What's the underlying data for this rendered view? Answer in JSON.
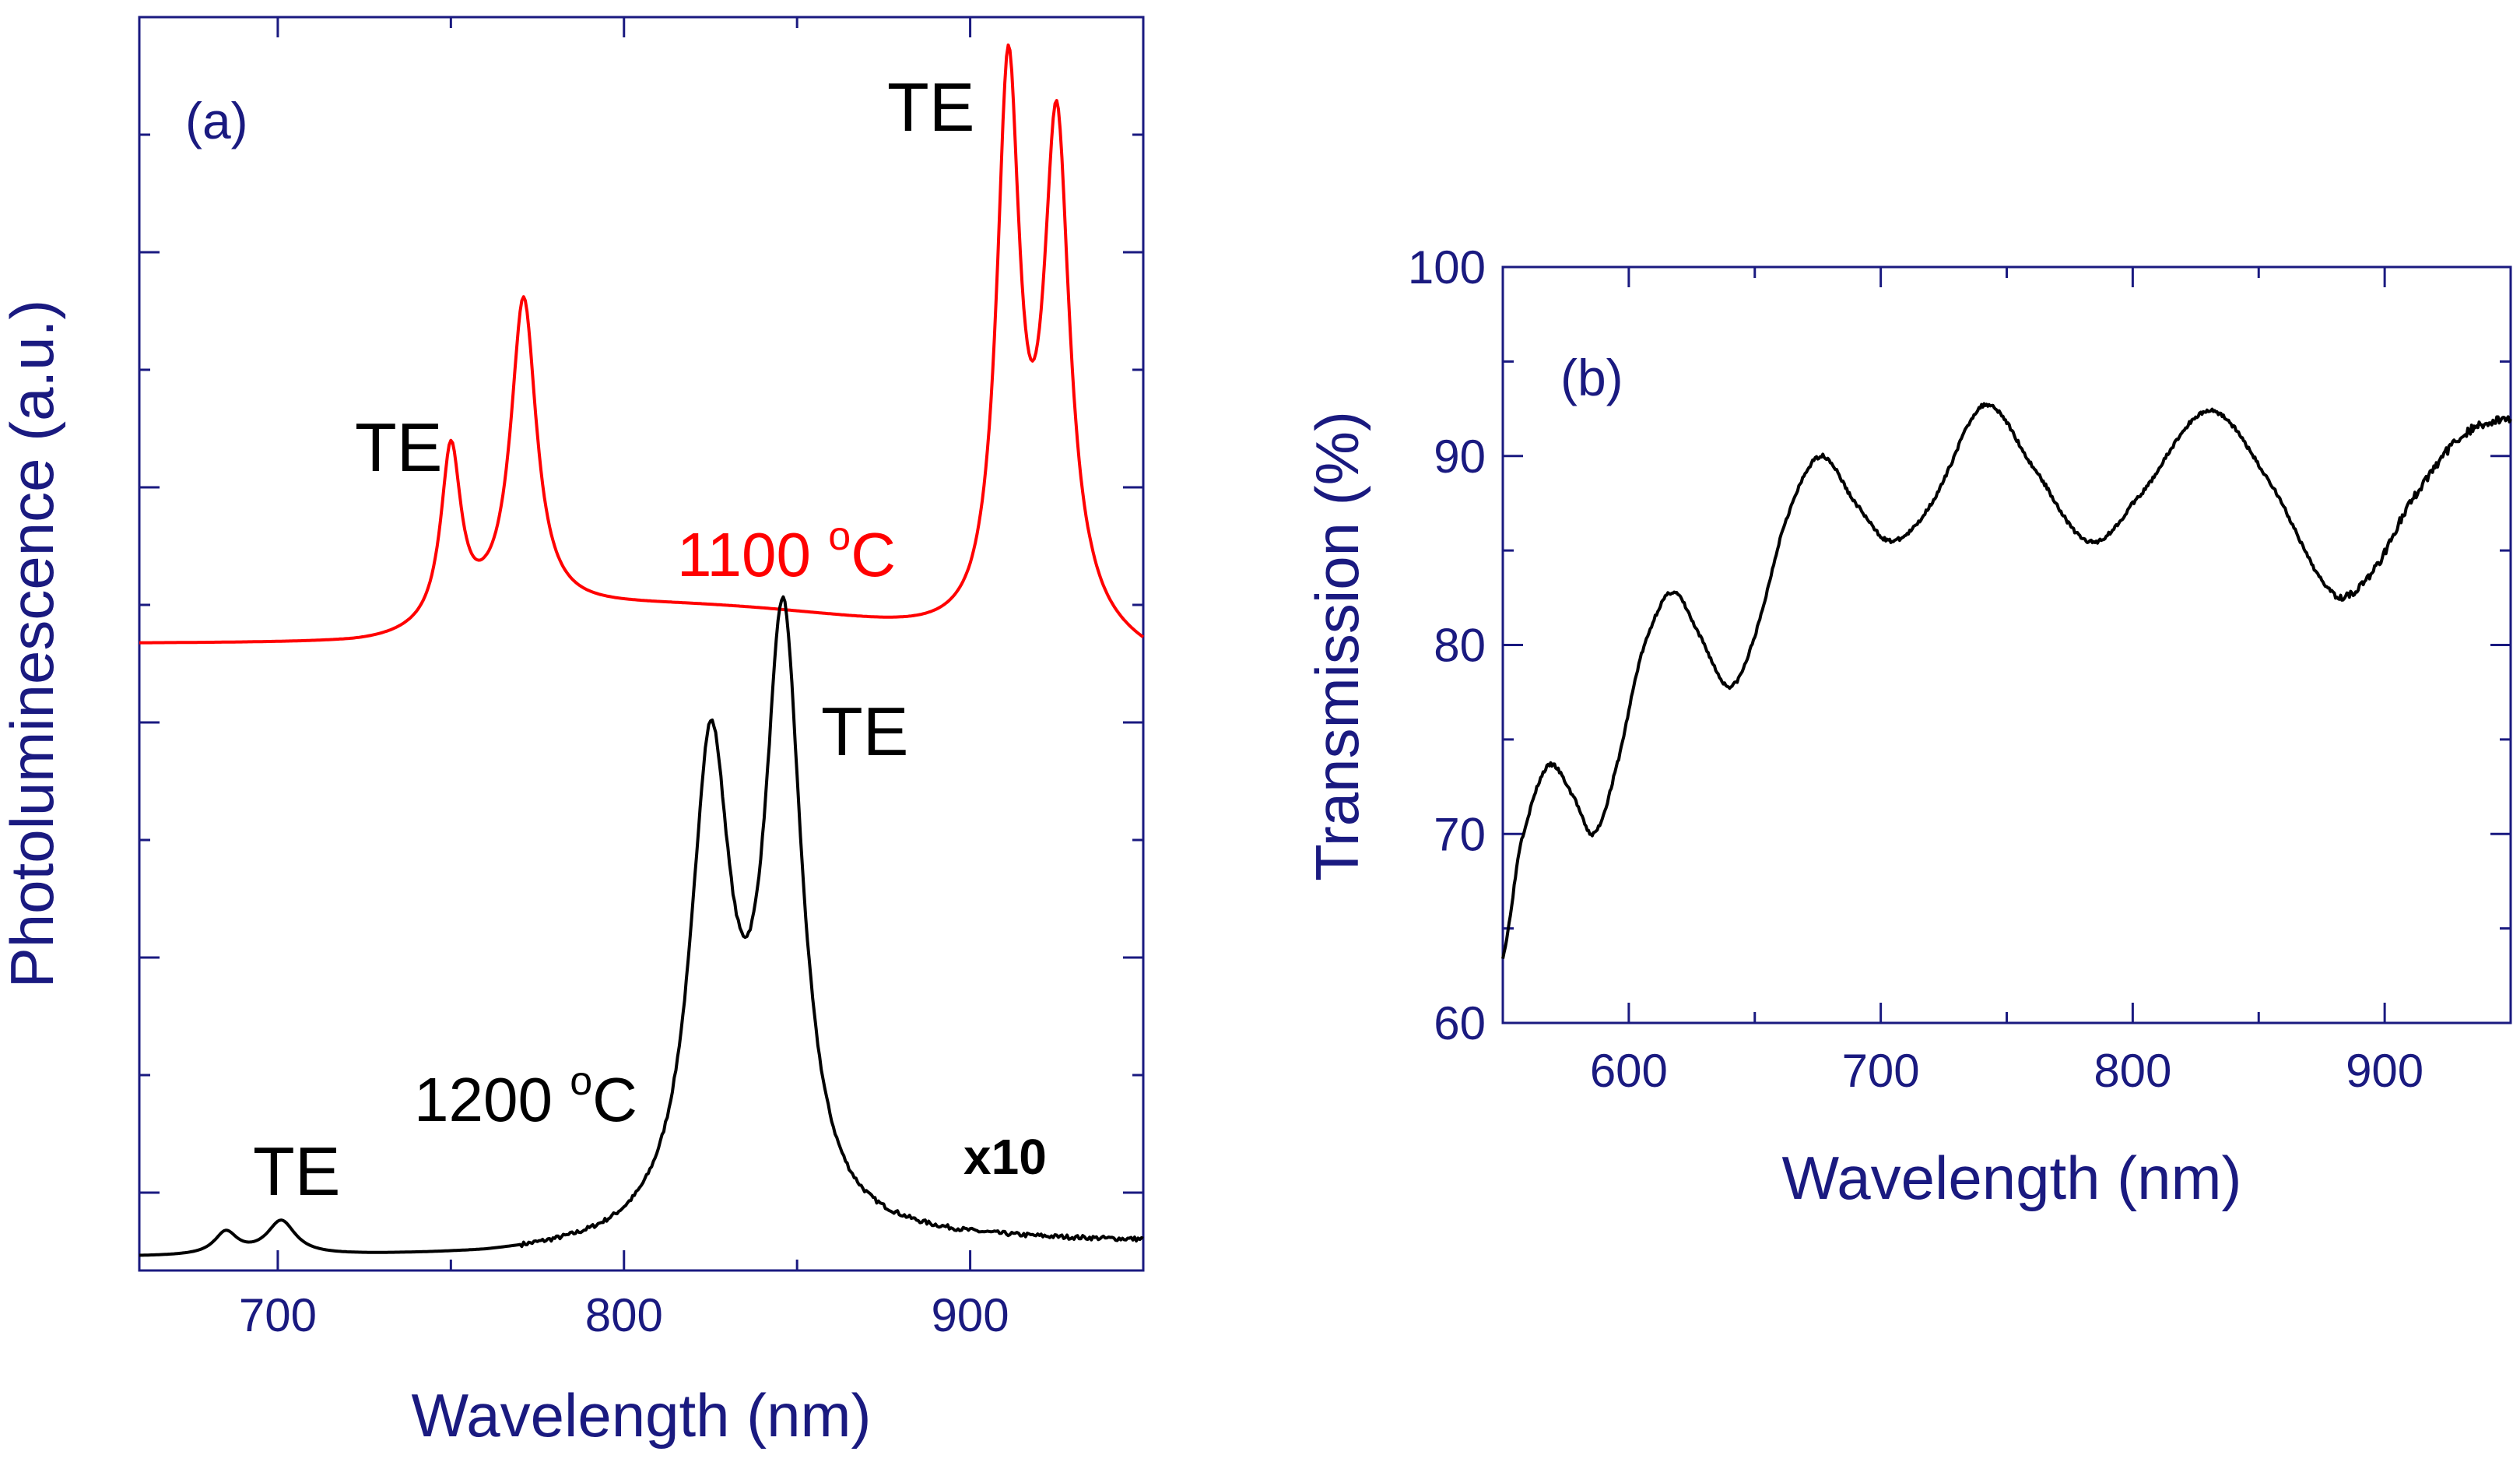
{
  "colors": {
    "axis": "#1a1a80",
    "series_1100": "#ff0000",
    "series_1200": "#000000",
    "transmission": "#000000"
  },
  "chart_data": [
    {
      "id": "a",
      "type": "line",
      "panel_label": "(a)",
      "xlabel": "Wavelength (nm)",
      "ylabel": "Photoluminescence (a.u.)",
      "xlim": [
        660,
        950
      ],
      "ylim": [
        0,
        100
      ],
      "xticks": [
        700,
        800,
        900
      ],
      "yticks_unlabeled": true,
      "series": [
        {
          "name": "1100 °C",
          "label_text": "1100 ",
          "label_sup": "o",
          "label_unit": "C",
          "color": "#ff0000",
          "baseline": 50,
          "slope_start": 0,
          "slope_min_x": 830,
          "slope_depth": 4,
          "tail_rise": 1.5,
          "peaks": [
            {
              "center": 750,
              "height": 14,
              "width": 3.5
            },
            {
              "center": 771,
              "height": 25,
              "width": 4.5
            },
            {
              "center": 911,
              "height": 44,
              "width": 4.0
            },
            {
              "center": 925,
              "height": 40,
              "width": 4.5
            }
          ]
        },
        {
          "name": "1200 °C",
          "label_text": "1200 ",
          "label_sup": "o",
          "label_unit": "C",
          "color": "#000000",
          "multiplier": "x10",
          "baseline": 1.0,
          "noise": 0.35,
          "peaks": [
            {
              "center": 685,
              "height": 1.8,
              "width": 4
            },
            {
              "center": 701,
              "height": 2.7,
              "width": 5
            },
            {
              "center": 825,
              "height": 38,
              "width": 7
            },
            {
              "center": 846,
              "height": 48,
              "width": 6.5
            }
          ]
        }
      ],
      "annotations": [
        {
          "text": "TE",
          "near_x": 740,
          "note": "over 1100 peaks at 750/771"
        },
        {
          "text": "TE",
          "near_x": 905,
          "note": "over 1100 peaks at 911/925"
        },
        {
          "text": "TE",
          "near_x": 855,
          "note": "beside 1200 peak at 846"
        },
        {
          "text": "TE",
          "near_x": 695,
          "note": "over 1200 small peaks"
        }
      ]
    },
    {
      "id": "b",
      "type": "line",
      "panel_label": "(b)",
      "xlabel": "Wavelength (nm)",
      "ylabel": "Transmission (%)",
      "xlim": [
        550,
        950
      ],
      "ylim": [
        60,
        100
      ],
      "xticks": [
        600,
        700,
        800,
        900
      ],
      "yticks": [
        60,
        70,
        80,
        90,
        100
      ],
      "series": [
        {
          "name": "Transmission",
          "color": "#000000",
          "x": [
            550,
            557,
            568,
            578,
            586,
            595,
            605,
            617,
            628,
            640,
            650,
            662,
            676,
            690,
            704,
            720,
            741,
            760,
            782,
            800,
            830,
            855,
            878,
            893,
            910,
            930,
            950
          ],
          "y": [
            63.5,
            69.5,
            73.6,
            72,
            70.0,
            73.5,
            79.5,
            82.8,
            80.5,
            77.8,
            80.5,
            86.5,
            90.0,
            87.5,
            85.5,
            87.5,
            92.7,
            89.5,
            85.5,
            87.5,
            92.4,
            88.5,
            83.0,
            83.5,
            87.5,
            91.0,
            92.0
          ]
        }
      ]
    }
  ]
}
